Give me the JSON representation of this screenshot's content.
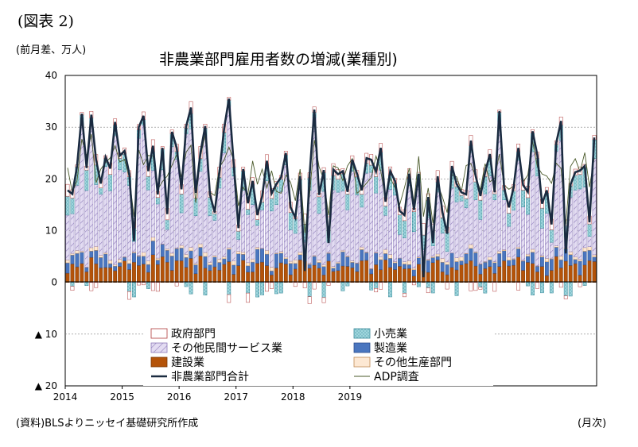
{
  "figure_label": "(図表 2)",
  "unit_label": "(前月差、万人)",
  "source_label": "(資料)BLSよりニッセイ基礎研究所作成",
  "period_label": "(月次)",
  "colors": {
    "government": "#ffffff",
    "government_stroke": "#b03a3a",
    "retail": "#9fd6dd",
    "retail_stroke": "#3a8a9a",
    "other_private": "#e3dcf2",
    "other_private_stroke": "#8b79b8",
    "manufacturing": "#4a76bf",
    "manufacturing_stroke": "#2b4f8f",
    "construction": "#b45309",
    "construction_stroke": "#7a3706",
    "other_goods": "#fde8d3",
    "other_goods_stroke": "#c08a55",
    "total_line": "#1a2b40",
    "adp_line": "#4a5a2a",
    "grid": "#7f7f7f"
  },
  "chart_data": {
    "type": "bar",
    "title": "非農業部門雇用者数の増減(業種別)",
    "xlabel": "",
    "ylabel": "",
    "ylim": [
      -20,
      40
    ],
    "y_ticks": [
      40,
      30,
      20,
      10,
      0,
      -10,
      -20
    ],
    "y_tick_labels": [
      "40",
      "30",
      "20",
      "10",
      "0",
      "▲ 10",
      "▲ 20"
    ],
    "x_tick_labels": [
      "2014",
      "2015",
      "2016",
      "2017",
      "2018",
      "2019"
    ],
    "x_start": "2014-01",
    "grid": true,
    "stacked": true,
    "legend_placement": "bottom-center",
    "legend": [
      {
        "key": "government",
        "label": "政府部門",
        "kind": "bar"
      },
      {
        "key": "retail",
        "label": "小売業",
        "kind": "bar"
      },
      {
        "key": "other_private",
        "label": "その他民間サービス業",
        "kind": "bar"
      },
      {
        "key": "manufacturing",
        "label": "製造業",
        "kind": "bar"
      },
      {
        "key": "construction",
        "label": "建設業",
        "kind": "bar"
      },
      {
        "key": "other_goods",
        "label": "その他生産部門",
        "kind": "bar"
      },
      {
        "key": "total",
        "label": "非農業部門合計",
        "kind": "line_thick"
      },
      {
        "key": "adp",
        "label": "ADP調査",
        "kind": "line_thin"
      }
    ],
    "total": [
      17.8,
      17.1,
      22.5,
      32.6,
      22.1,
      32.4,
      23.7,
      19.1,
      24.2,
      22.0,
      31.0,
      24.5,
      25.4,
      21.0,
      8.0,
      30.0,
      32.2,
      21.5,
      26.4,
      17.0,
      26.0,
      13.2,
      29.1,
      26.0,
      18.0,
      30.2,
      33.8,
      17.3,
      25.1,
      30.2,
      17.0,
      13.5,
      21.3,
      29.8,
      35.5,
      23.0,
      10.5,
      21.9,
      15.3,
      19.6,
      13.0,
      16.6,
      23.5,
      17.2,
      19.0,
      20.3,
      25.0,
      14.5,
      12.5,
      20.5,
      2.2,
      20.7,
      33.4,
      16.9,
      21.7,
      7.6,
      21.8,
      20.9,
      21.5,
      17.5,
      23.7,
      21.0,
      17.8,
      24.0,
      23.7,
      21.4,
      26.0,
      15.6,
      21.5,
      19.6,
      13.8,
      13.0,
      21.0,
      14.0,
      21.0,
      1.0,
      16.5,
      7.6,
      20.5,
      13.6,
      9.4,
      22.5,
      19.0,
      17.4,
      17.0,
      27.4,
      20.6,
      16.7,
      21.3,
      24.8,
      17.4,
      33.1,
      18.3,
      14.5,
      18.3,
      26.0,
      18.8,
      17.5,
      29.2,
      24.6,
      15.2,
      17.8,
      11.2,
      27.0,
      31.2,
      5.6,
      18.9,
      21.3,
      21.6,
      22.5,
      11.6,
      28.0
    ]
  }
}
